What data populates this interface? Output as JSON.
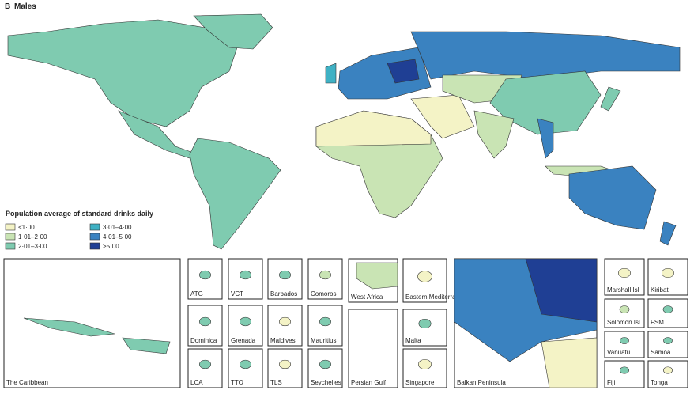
{
  "panel_label": "B",
  "title": "Males",
  "legend": {
    "title": "Population average of standard drinks daily",
    "items": [
      {
        "label": "<1·00",
        "color": "#f4f3c6"
      },
      {
        "label": "1·01–2·00",
        "color": "#c9e4b4"
      },
      {
        "label": "2·01–3·00",
        "color": "#7fcbb0"
      },
      {
        "label": "3·01–4·00",
        "color": "#3fb1c4"
      },
      {
        "label": "4·01–5·00",
        "color": "#3a82c0"
      },
      {
        "label": ">5·00",
        "color": "#1f3f94"
      }
    ]
  },
  "insets": [
    "The Caribbean",
    "ATG",
    "Dominica",
    "LCA",
    "VCT",
    "Grenada",
    "TTO",
    "Barbados",
    "Maldives",
    "TLS",
    "Comoros",
    "Mauritius",
    "Seychelles",
    "West Africa",
    "Persian Gulf",
    "Eastern Mediterranean",
    "Malta",
    "Singapore",
    "Balkan Peninsula",
    "Marshall Isl",
    "Kiribati",
    "Solomon Isl",
    "FSM",
    "Vanuatu",
    "Samoa",
    "Fiji",
    "Tonga"
  ]
}
